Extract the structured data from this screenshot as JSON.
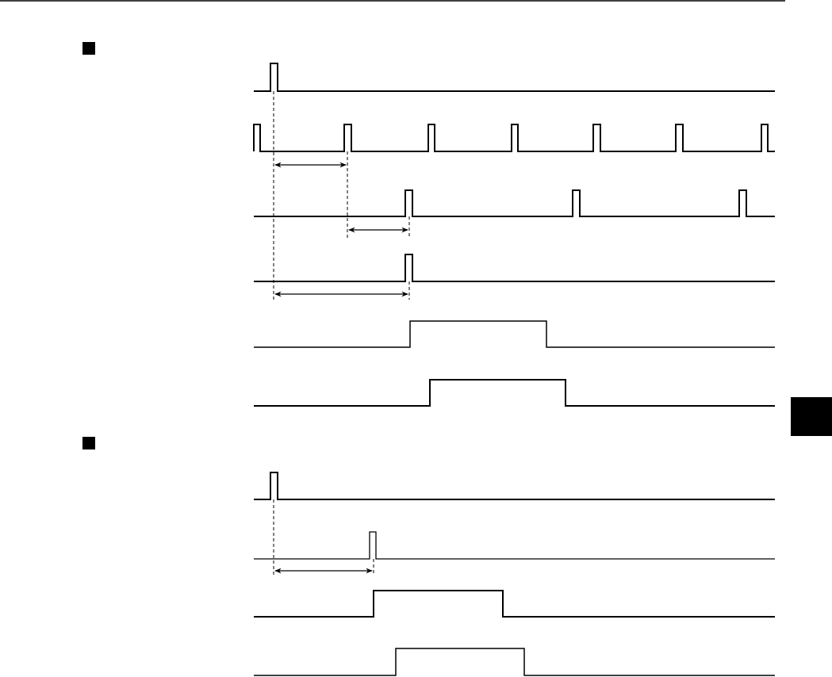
{
  "colors": {
    "ink": "#000000",
    "background": "#ffffff"
  },
  "section_markers": [
    "square-bullet",
    "square-bullet"
  ],
  "side_tab": {
    "color": "#000000"
  }
}
